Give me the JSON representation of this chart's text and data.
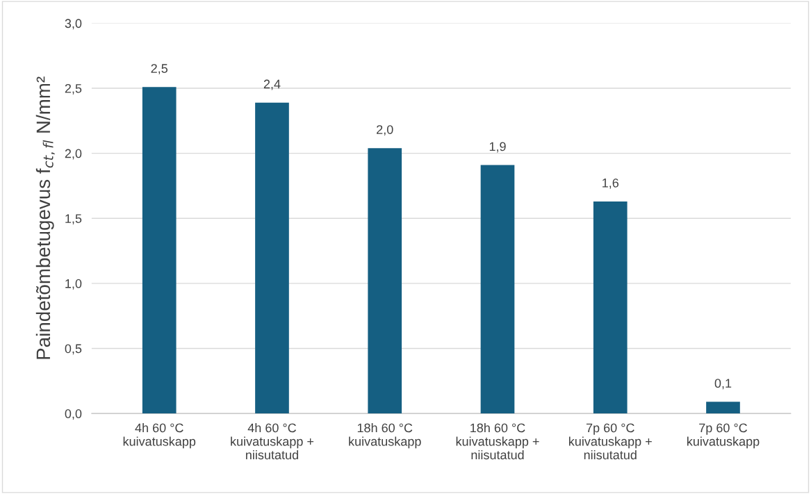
{
  "chart_data": {
    "type": "bar",
    "ylabel": "Paindetõmbetugevus f$_{ct,fl}$ N/mm²",
    "categories": [
      "4h 60 °C\nkuivatuskapp",
      "4h 60 °C\nkuivatuskapp +\nniisutatud",
      "18h 60 °C\nkuivatuskapp",
      "18h 60 °C\nkuivatuskapp +\nniisutatud",
      "7p 60 °C\nkuivatuskapp +\nniisutatud",
      "7p 60 °C\nkuivatuskapp"
    ],
    "values": [
      2.51,
      2.39,
      2.04,
      1.91,
      1.63,
      0.09
    ],
    "value_labels": [
      "2,5",
      "2,4",
      "2,0",
      "1,9",
      "1,6",
      "0,1"
    ],
    "color": "#155f82",
    "ylim": [
      0,
      3
    ],
    "yticks": [
      {
        "value": 0,
        "label": "0,0"
      },
      {
        "value": 0.5,
        "label": "0,5"
      },
      {
        "value": 1,
        "label": "1,0"
      },
      {
        "value": 1.5,
        "label": "1,5"
      },
      {
        "value": 2,
        "label": "2,0"
      },
      {
        "value": 2.5,
        "label": "2,5"
      },
      {
        "value": 3,
        "label": "3,0"
      }
    ],
    "grid": "y",
    "legend": false
  }
}
